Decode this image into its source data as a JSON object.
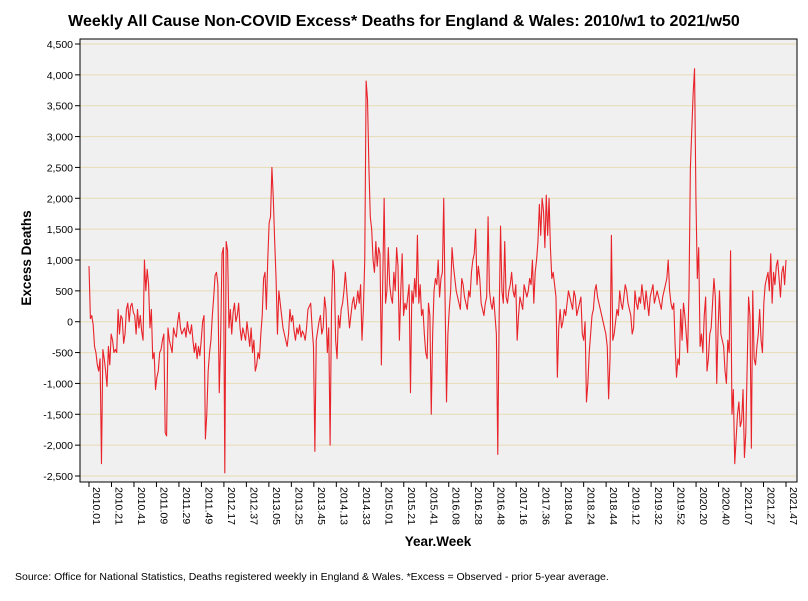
{
  "chart_data": {
    "type": "line",
    "title": "Weekly All Cause Non-COVID Excess* Deaths for England & Wales: 2010/w1 to 2021/w50",
    "xlabel": "Year.Week",
    "ylabel": "Excess Deaths",
    "ylim": [
      -2500,
      4500
    ],
    "yticks": [
      -2500,
      -2000,
      -1500,
      -1000,
      -500,
      0,
      500,
      1000,
      1500,
      2000,
      2500,
      3000,
      3500,
      4000,
      4500
    ],
    "ytick_labels": [
      "-2,500",
      "-2,000",
      "-1,500",
      "-1,000",
      "-500",
      "0",
      "500",
      "1,000",
      "1,500",
      "2,000",
      "2,500",
      "3,000",
      "3,500",
      "4,000",
      "4,500"
    ],
    "x_tick_labels": [
      "2010.01",
      "2010.21",
      "2010.41",
      "2011.09",
      "2011.29",
      "2011.49",
      "2012.17",
      "2012.37",
      "2013.05",
      "2013.25",
      "2013.45",
      "2014.13",
      "2014.33",
      "2015.01",
      "2015.21",
      "2015.41",
      "2016.08",
      "2016.28",
      "2016.48",
      "2017.16",
      "2017.36",
      "2018.04",
      "2018.24",
      "2018.44",
      "2019.12",
      "2019.32",
      "2019.52",
      "2020.20",
      "2020.40",
      "2021.07",
      "2021.27",
      "2021.47"
    ],
    "grid": true,
    "line_color": "#e8232a",
    "series": [
      {
        "name": "Excess deaths",
        "values": [
          900,
          50,
          100,
          -50,
          -400,
          -500,
          -700,
          -800,
          -600,
          -2300,
          -450,
          -600,
          -800,
          -1050,
          -400,
          -700,
          -200,
          -300,
          -500,
          -450,
          -500,
          200,
          -200,
          100,
          50,
          -350,
          -200,
          200,
          300,
          0,
          250,
          300,
          150,
          100,
          -200,
          200,
          -100,
          100,
          -150,
          -300,
          1000,
          500,
          850,
          600,
          -100,
          200,
          -600,
          -500,
          -1100,
          -900,
          -800,
          -500,
          -450,
          -300,
          -200,
          -1800,
          -1850,
          -100,
          -300,
          -400,
          -500,
          -100,
          -200,
          -250,
          0,
          150,
          -100,
          -200,
          -150,
          -100,
          -250,
          0,
          -150,
          -200,
          -50,
          -300,
          -500,
          -350,
          -600,
          -400,
          -550,
          -300,
          0,
          100,
          -1900,
          -1500,
          -800,
          -500,
          -300,
          100,
          400,
          750,
          800,
          600,
          -1150,
          -300,
          1100,
          1200,
          -2450,
          1300,
          1150,
          -100,
          200,
          -200,
          150,
          300,
          0,
          100,
          300,
          -100,
          -300,
          -100,
          -200,
          -300,
          0,
          -200,
          -400,
          -100,
          -500,
          -300,
          -800,
          -700,
          -500,
          -600,
          -200,
          100,
          700,
          800,
          200,
          1000,
          1600,
          1700,
          2500,
          2000,
          1300,
          700,
          -200,
          500,
          300,
          100,
          -100,
          -200,
          -300,
          -400,
          -200,
          200,
          0,
          100,
          -150,
          -300,
          -100,
          -200,
          -50,
          -250,
          -150,
          -200,
          -300,
          -100,
          200,
          250,
          300,
          -100,
          -400,
          -2100,
          -300,
          -150,
          0,
          100,
          -200,
          -100,
          400,
          200,
          -500,
          -100,
          -2000,
          200,
          1000,
          800,
          -300,
          -600,
          100,
          -100,
          200,
          300,
          500,
          800,
          500,
          200,
          -100,
          100,
          300,
          400,
          200,
          300,
          500,
          300,
          600,
          -300,
          200,
          1000,
          3900,
          3600,
          2500,
          1700,
          1500,
          1000,
          800,
          1300,
          900,
          1200,
          1100,
          -700,
          700,
          2000,
          300,
          500,
          1200,
          600,
          400,
          300,
          800,
          500,
          1200,
          900,
          -300,
          500,
          1100,
          100,
          300,
          200,
          400,
          600,
          -1150,
          500,
          300,
          700,
          400,
          1400,
          300,
          600,
          100,
          200,
          -200,
          -500,
          -600,
          300,
          100,
          -1500,
          -200,
          500,
          700,
          600,
          1000,
          400,
          700,
          800,
          2000,
          300,
          -1300,
          -200,
          200,
          500,
          1200,
          900,
          700,
          500,
          400,
          300,
          200,
          700,
          600,
          400,
          300,
          200,
          500,
          400,
          800,
          1000,
          1100,
          1500,
          600,
          900,
          700,
          300,
          200,
          100,
          300,
          400,
          1700,
          500,
          300,
          200,
          400,
          100,
          -200,
          -2150,
          100,
          1550,
          500,
          300,
          1300,
          400,
          300,
          500,
          600,
          800,
          500,
          400,
          600,
          -300,
          100,
          400,
          300,
          200,
          600,
          500,
          400,
          500,
          700,
          600,
          1000,
          300,
          800,
          1000,
          1300,
          1900,
          1400,
          2000,
          1800,
          1200,
          2050,
          1400,
          2000,
          1200,
          700,
          800,
          600,
          400,
          -900,
          -100,
          200,
          -100,
          0,
          200,
          100,
          300,
          500,
          400,
          300,
          200,
          500,
          400,
          100,
          200,
          300,
          400,
          -200,
          -300,
          0,
          -1300,
          -1000,
          -500,
          -200,
          100,
          200,
          500,
          600,
          400,
          300,
          200,
          100,
          0,
          -100,
          -200,
          -400,
          -1250,
          -600,
          1400,
          -300,
          -200,
          0,
          200,
          100,
          500,
          300,
          200,
          400,
          600,
          500,
          300,
          200,
          100,
          -200,
          -100,
          500,
          300,
          200,
          400,
          300,
          600,
          400,
          200,
          500,
          300,
          100,
          400,
          500,
          600,
          300,
          400,
          500,
          400,
          300,
          200,
          400,
          500,
          600,
          700,
          1000,
          500,
          300,
          200,
          300,
          -400,
          -900,
          -600,
          -700,
          200,
          -300,
          300,
          100,
          -200,
          -500,
          500,
          2500,
          3100,
          3700,
          4100,
          2000,
          700,
          1200,
          -400,
          -200,
          -500,
          100,
          400,
          -800,
          -600,
          -200,
          -100,
          300,
          700,
          400,
          -1000,
          -100,
          500,
          -200,
          -300,
          -400,
          -800,
          -1000,
          -300,
          -500,
          1150,
          -1500,
          -1100,
          -2300,
          -1900,
          -1500,
          -1300,
          -1700,
          -1600,
          -1100,
          -2200,
          -1800,
          -700,
          400,
          100,
          -2050,
          500,
          -600,
          -700,
          -400,
          -200,
          200,
          -300,
          -500,
          300,
          600,
          700,
          800,
          500,
          1100,
          300,
          800,
          600,
          900,
          1000,
          700,
          400,
          800,
          900,
          600,
          1000
        ]
      }
    ],
    "source": "Source: Office for National Statistics, Deaths registered weekly in England & Wales. *Excess = Observed - prior 5-year average."
  }
}
